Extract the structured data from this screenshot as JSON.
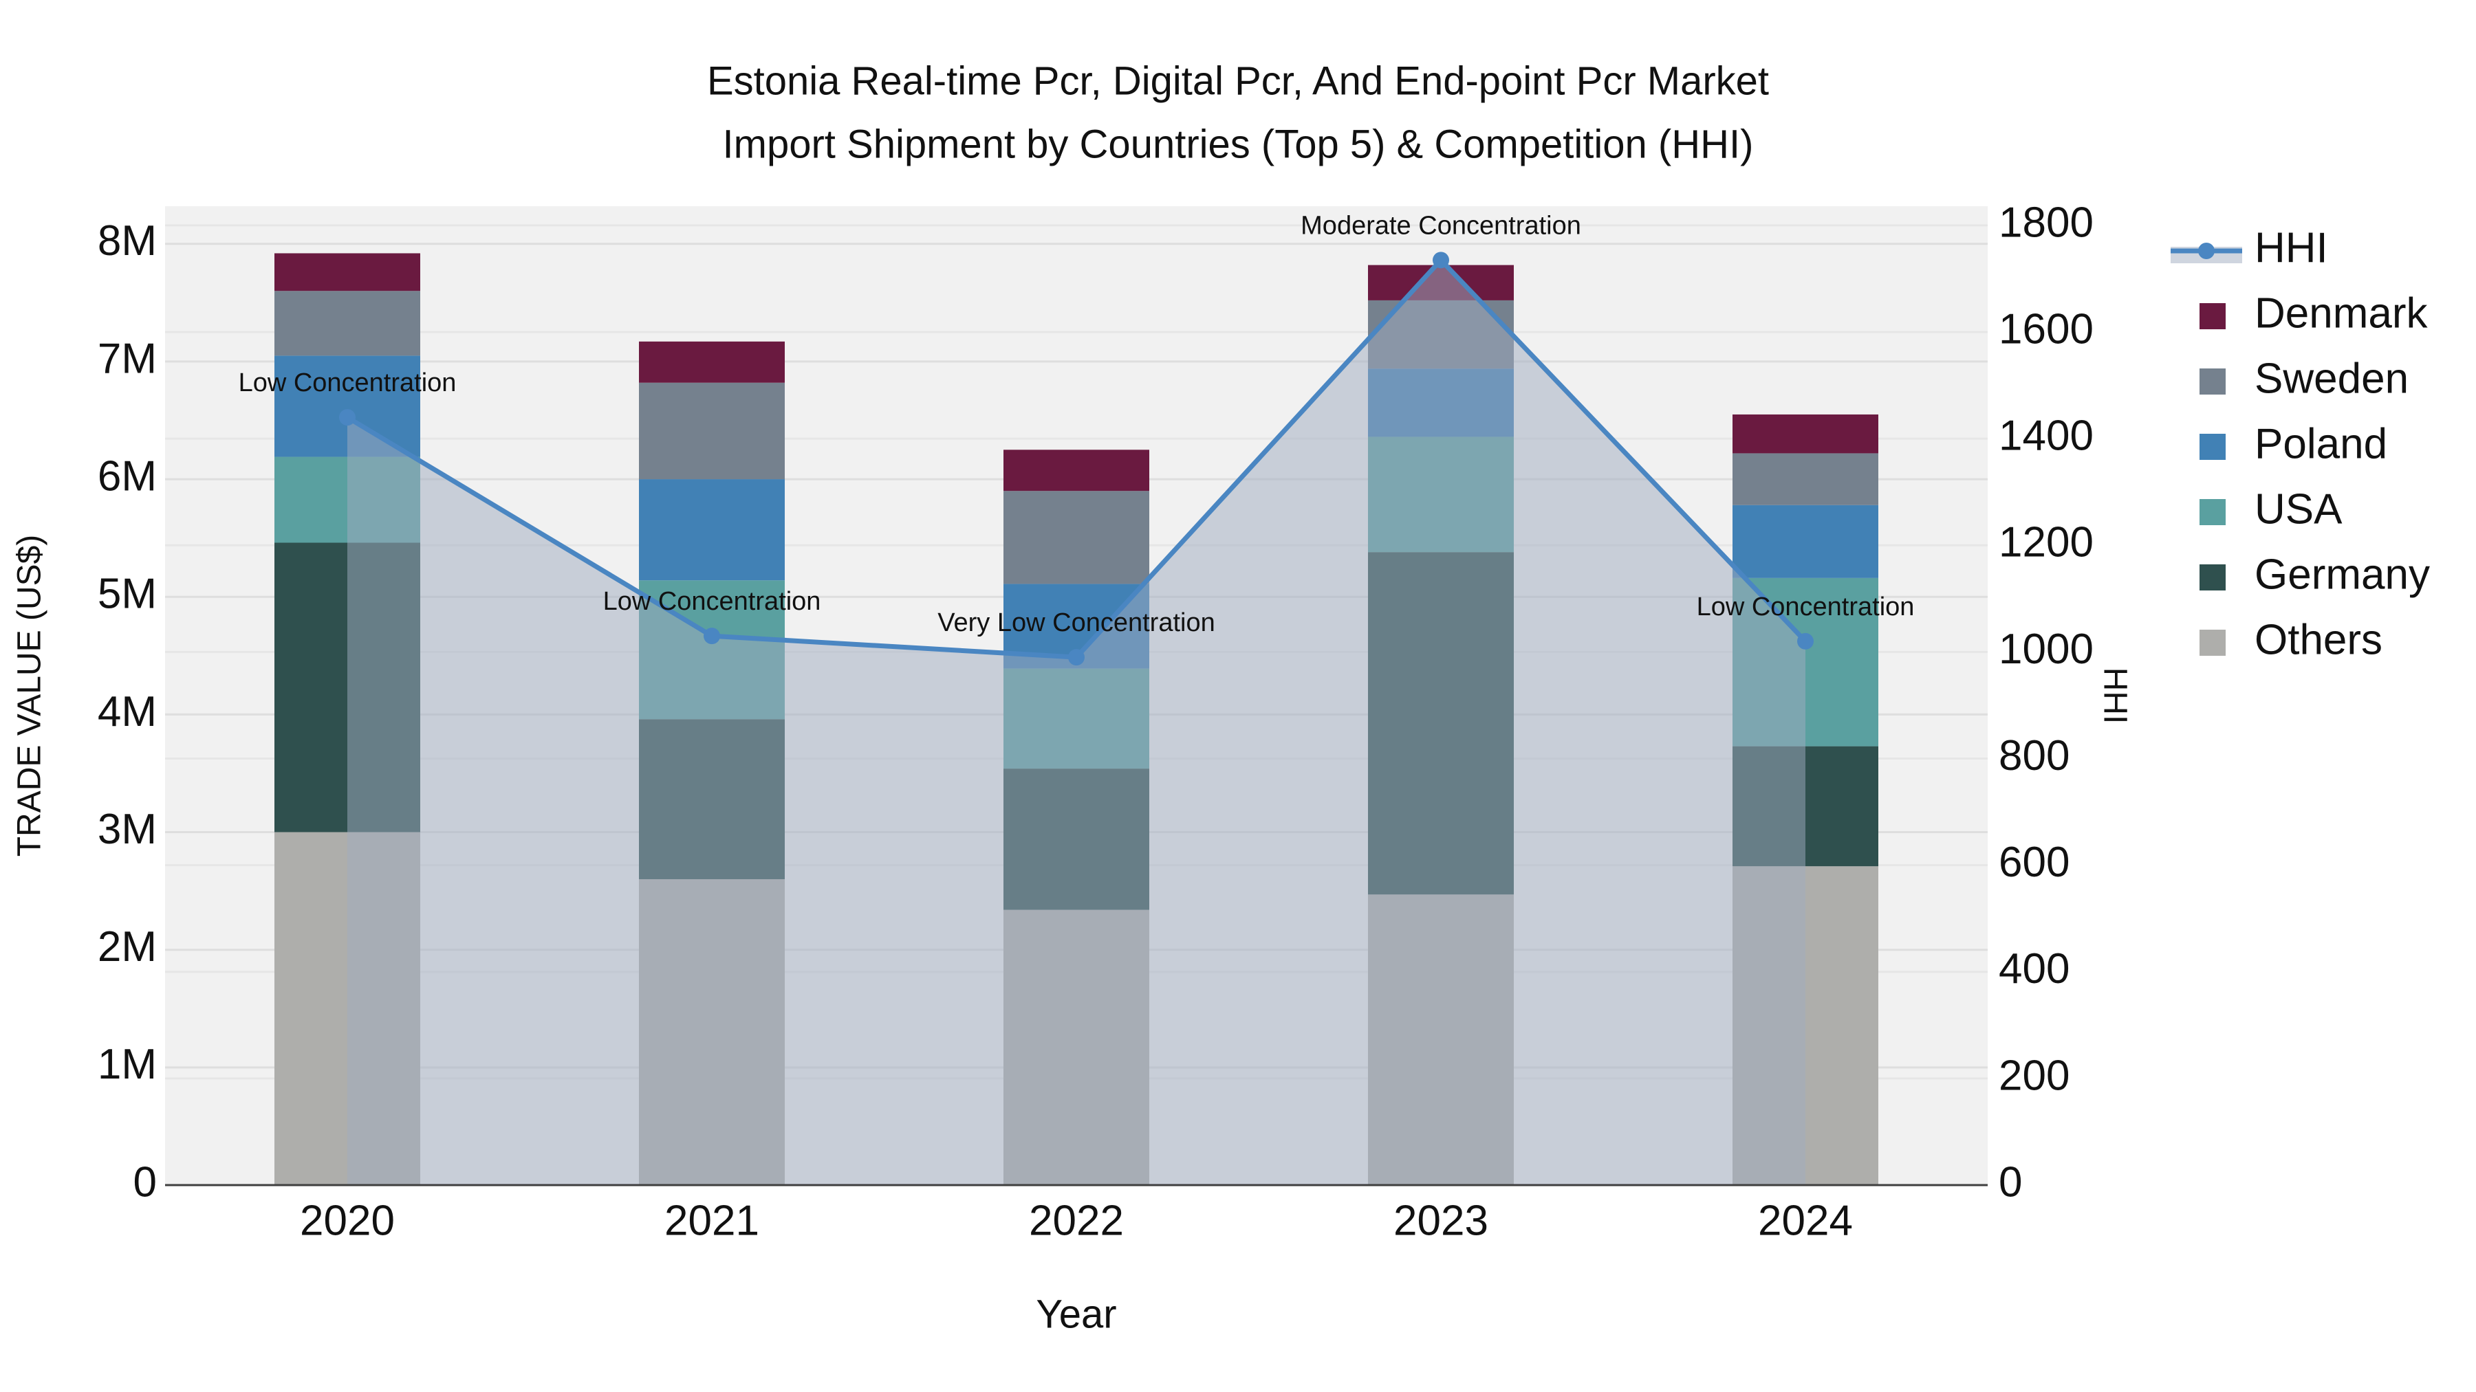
{
  "chart_data": {
    "type": "bar",
    "stacked": true,
    "title_lines": [
      "Estonia Real-time Pcr, Digital Pcr, And End-point Pcr Market",
      "Import Shipment by Countries (Top 5) & Competition (HHI)"
    ],
    "xlabel": "Year",
    "ylabel_left": "TRADE VALUE (US$)",
    "ylabel_right": "HHI",
    "categories": [
      "2020",
      "2021",
      "2022",
      "2023",
      "2024"
    ],
    "series": [
      {
        "name": "Others",
        "color": "#aeaeab",
        "values": [
          3.0,
          2.6,
          2.34,
          2.47,
          2.71
        ]
      },
      {
        "name": "Germany",
        "color": "#2f504e",
        "values": [
          2.46,
          1.36,
          1.2,
          2.91,
          1.02
        ]
      },
      {
        "name": "USA",
        "color": "#5aa0a0",
        "values": [
          0.73,
          1.18,
          0.85,
          0.98,
          1.43
        ]
      },
      {
        "name": "Poland",
        "color": "#4181b5",
        "values": [
          0.86,
          0.86,
          0.72,
          0.58,
          0.62
        ]
      },
      {
        "name": "Sweden",
        "color": "#75818e",
        "values": [
          0.55,
          0.82,
          0.79,
          0.58,
          0.44
        ]
      },
      {
        "name": "Denmark",
        "color": "#6a1a40",
        "values": [
          0.32,
          0.35,
          0.35,
          0.3,
          0.33
        ]
      }
    ],
    "line_series": {
      "name": "HHI",
      "color": "#4a86c2",
      "fill_color": "rgba(160,172,192,0.5)",
      "values": [
        1440,
        1030,
        990,
        1735,
        1020
      ],
      "annotations": [
        "Low Concentration",
        "Low Concentration",
        "Very Low Concentration",
        "Moderate Concentration",
        "Low Concentration"
      ]
    },
    "yaxis_left": {
      "ticks": [
        "0",
        "1M",
        "2M",
        "3M",
        "4M",
        "5M",
        "6M",
        "7M",
        "8M"
      ],
      "tick_value_step": 1,
      "max": 8.32
    },
    "yaxis_right": {
      "ticks": [
        "0",
        "200",
        "400",
        "600",
        "800",
        "1000",
        "1200",
        "1400",
        "1600",
        "1800"
      ],
      "tick_value_step": 200,
      "max": 1836
    },
    "legend": [
      "HHI",
      "Denmark",
      "Sweden",
      "Poland",
      "USA",
      "Germany",
      "Others"
    ],
    "grid": true,
    "legend_position": "right",
    "plot_bg": "#f1f1f1",
    "grid_color": "#dedede",
    "axis_line_color": "#3f3f3f"
  }
}
